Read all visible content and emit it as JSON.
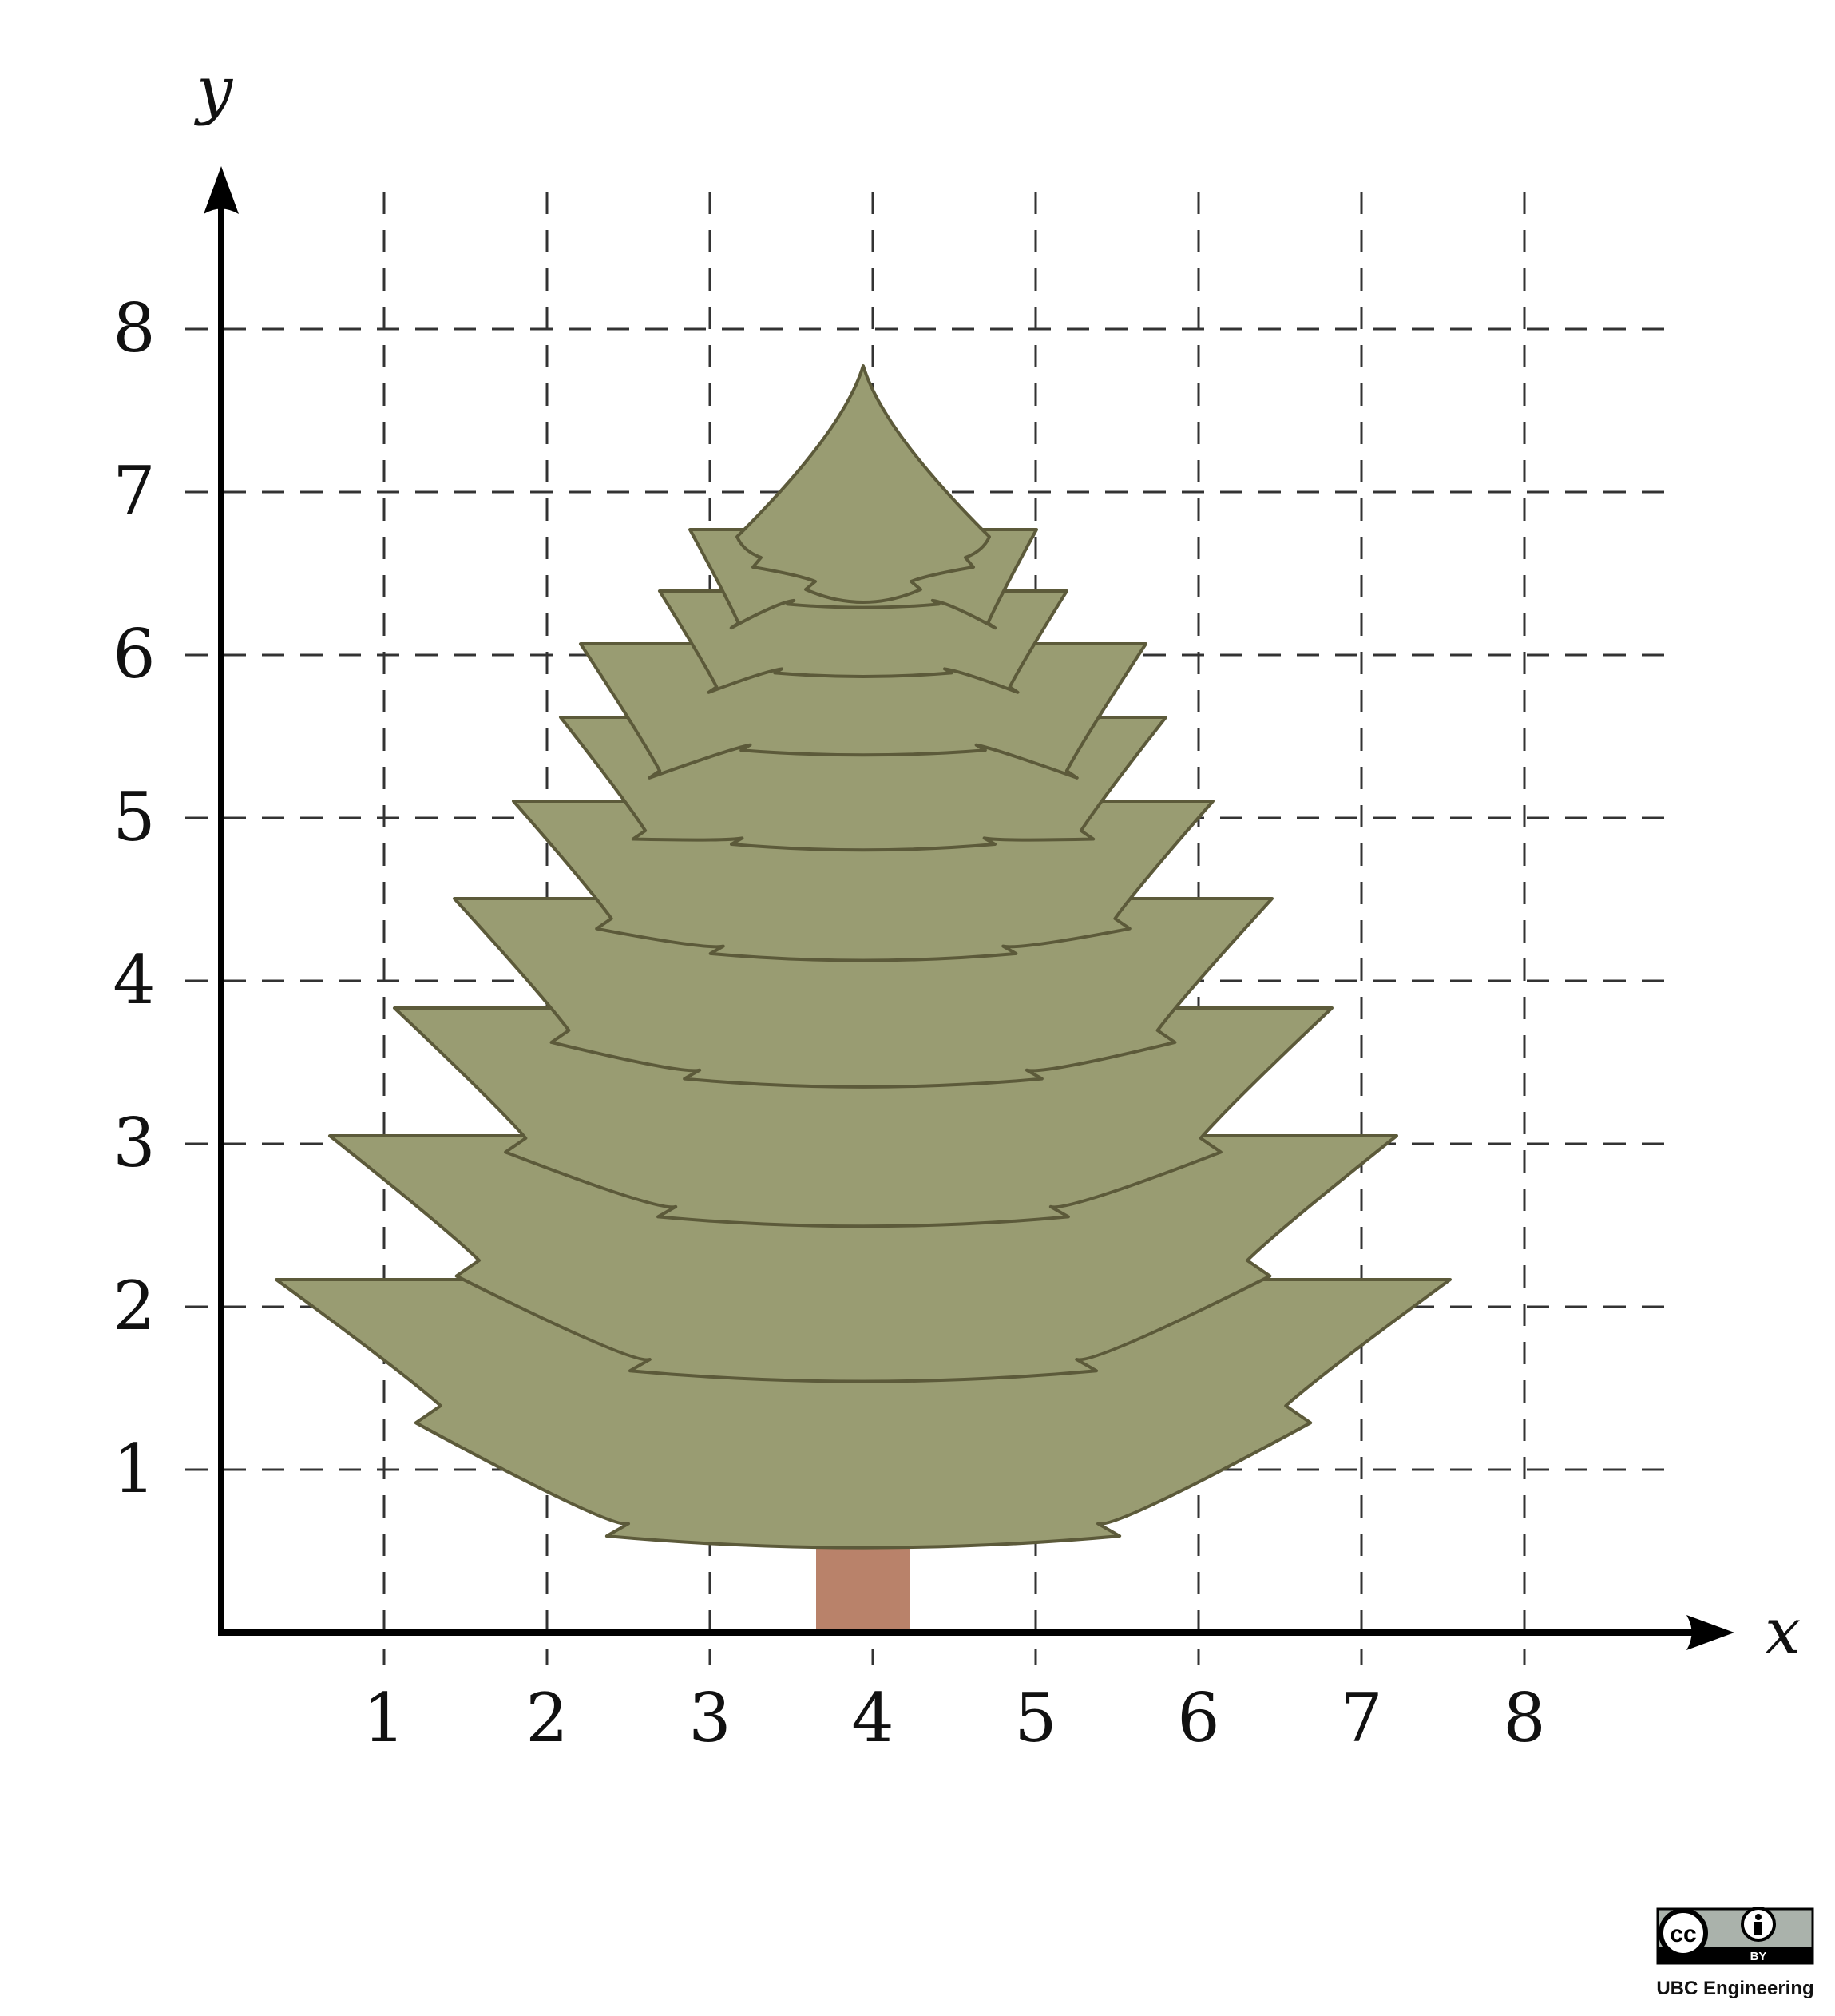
{
  "axes": {
    "x_label": "x",
    "y_label": "y",
    "x_ticks": [
      "1",
      "2",
      "3",
      "4",
      "5",
      "6",
      "7",
      "8"
    ],
    "y_ticks": [
      "1",
      "2",
      "3",
      "4",
      "5",
      "6",
      "7",
      "8"
    ],
    "grid": "dashed"
  },
  "figure": {
    "subject": "tree",
    "tree_color": "#999c72",
    "tree_outline_color": "#5c5a3a",
    "trunk_color": "#b9826a"
  },
  "license": {
    "cc": "cc",
    "by": "BY",
    "credit": "UBC Engineering",
    "icon": "creative-commons-by-icon"
  }
}
